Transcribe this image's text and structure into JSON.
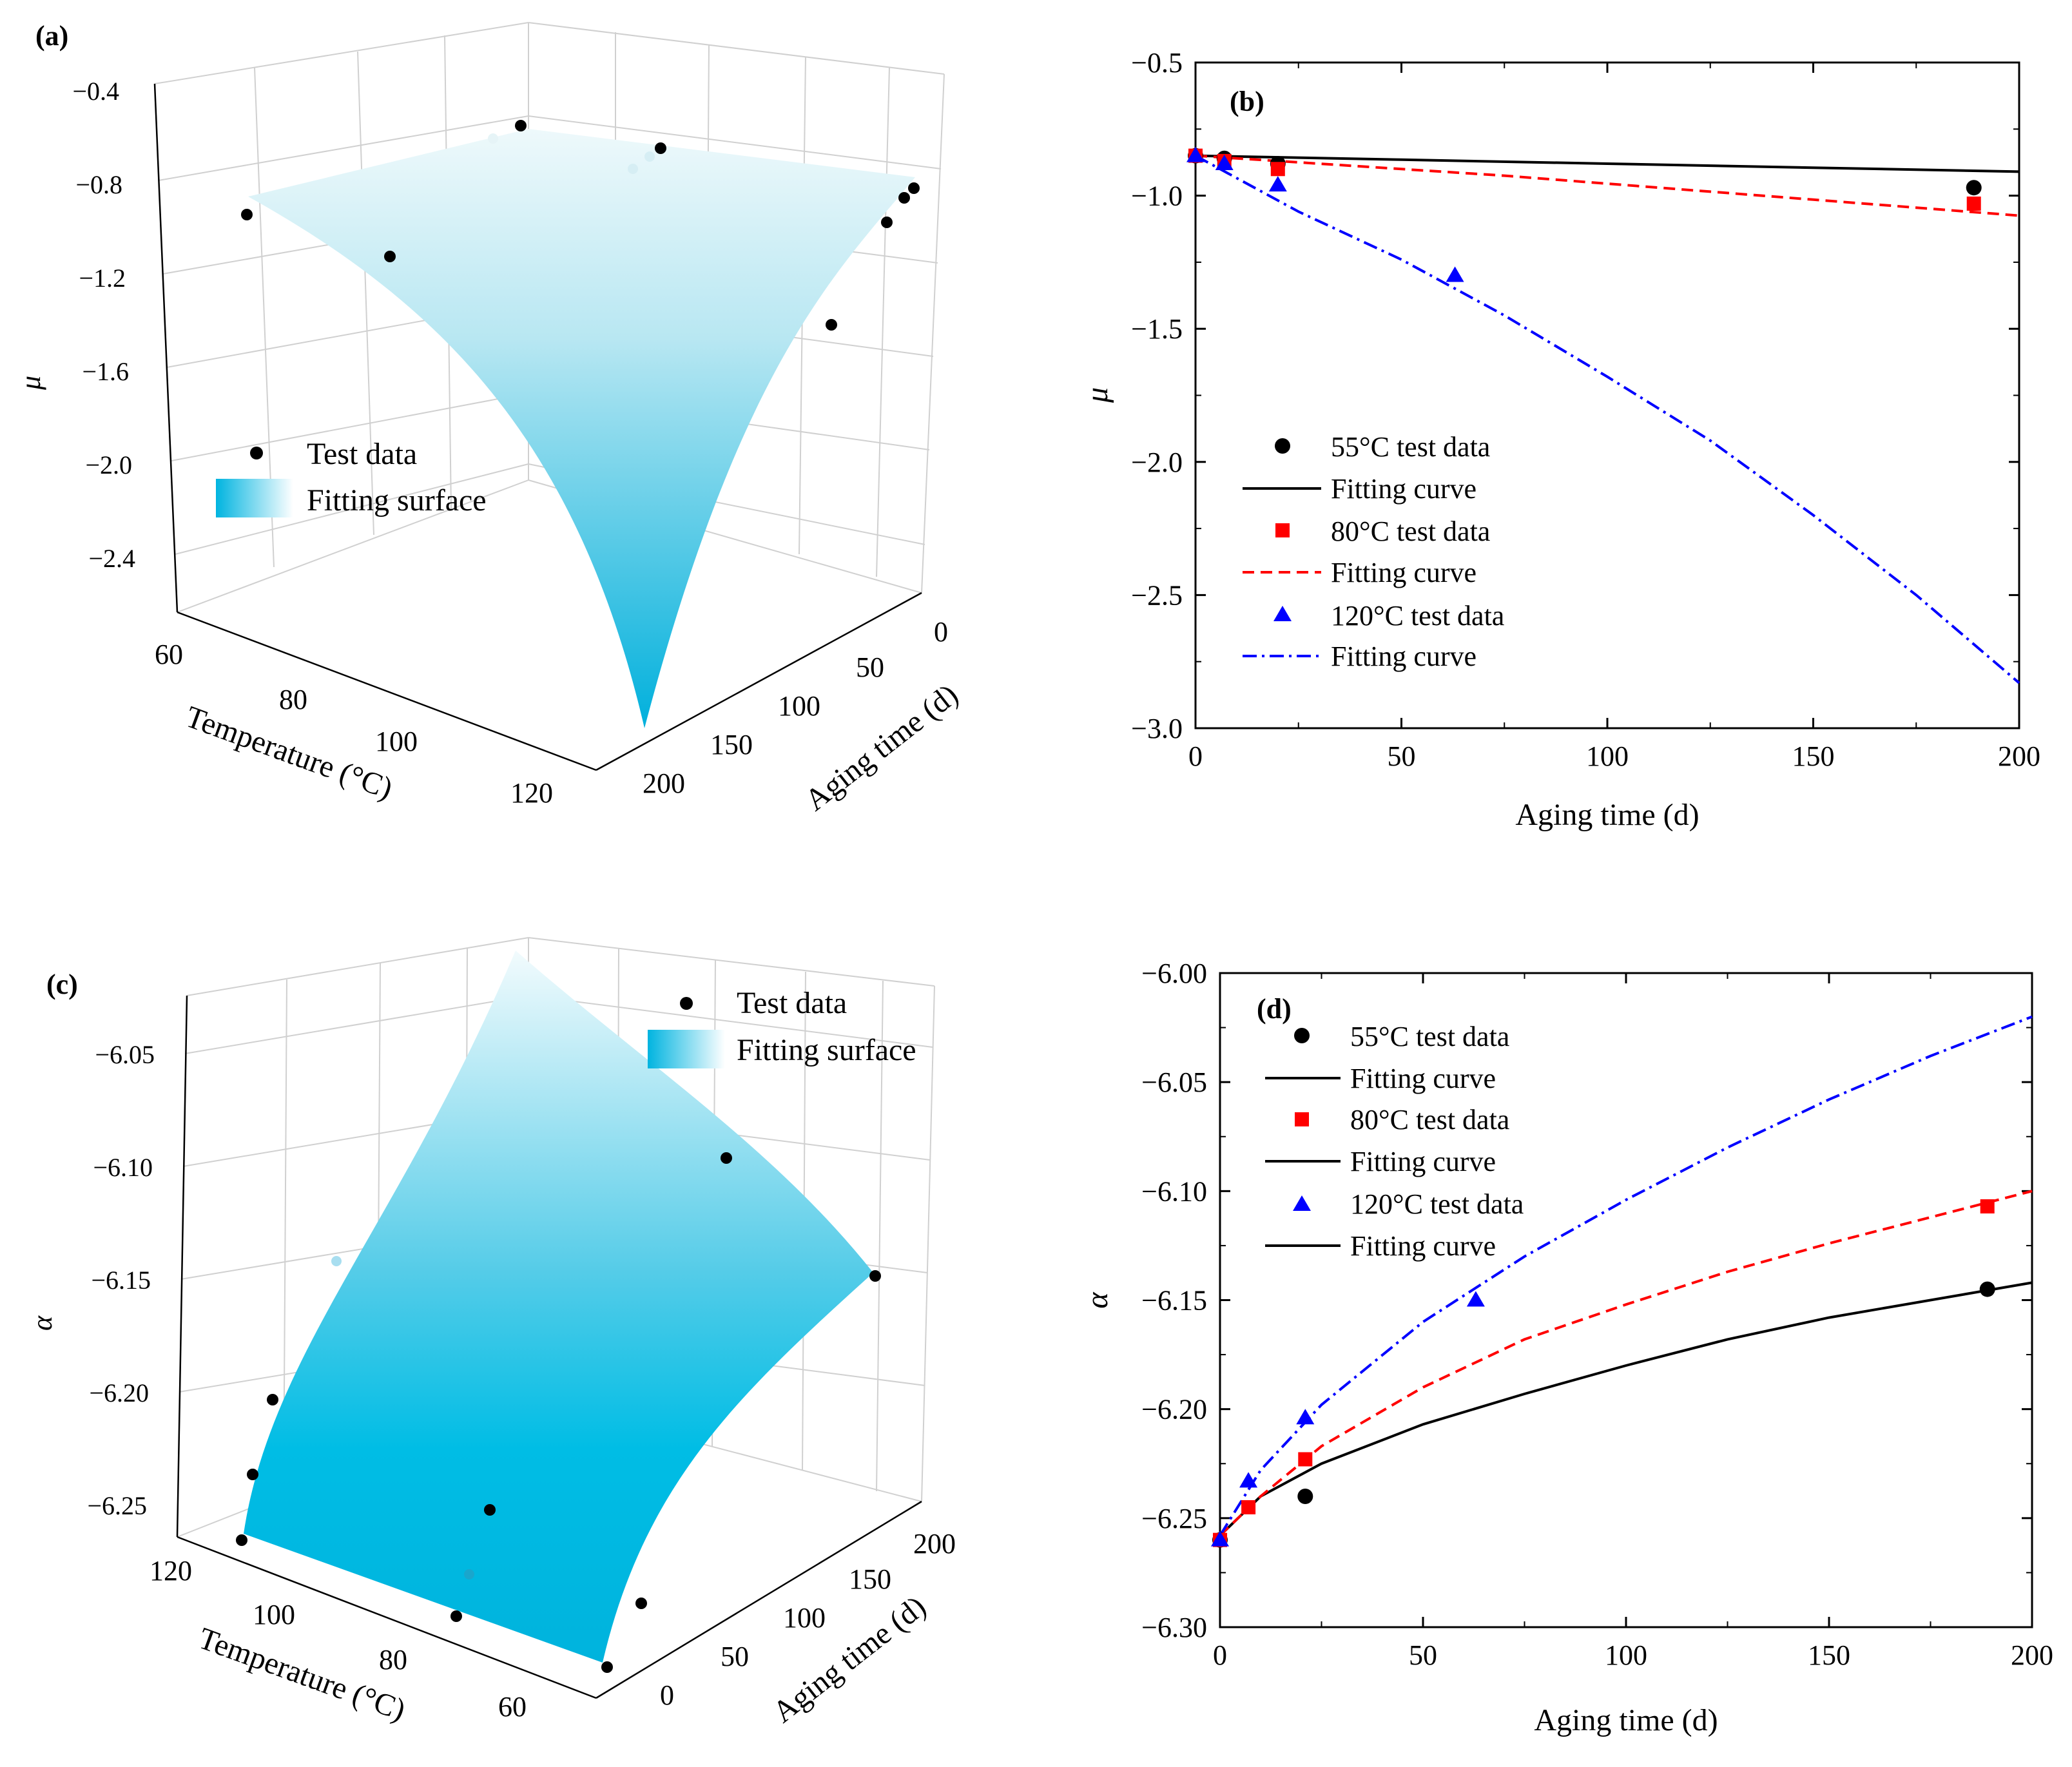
{
  "chart_data": [
    {
      "panel": "(a)",
      "type": "surface3d",
      "zlabel": "μ",
      "xlabel": "Temperature (°C)",
      "ylabel": "Aging time (d)",
      "z_ticks": [
        "−0.4",
        "−0.8",
        "−1.2",
        "−1.6",
        "−2.0",
        "−2.4"
      ],
      "x_ticks": [
        "60",
        "80",
        "100",
        "120"
      ],
      "y_ticks": [
        "0",
        "50",
        "100",
        "150",
        "200"
      ],
      "xlim": [
        55,
        120
      ],
      "ylim": [
        0,
        200
      ],
      "zlim": [
        -2.7,
        -0.4
      ],
      "legend": [
        "Test data",
        "Fitting surface"
      ],
      "legend_position": "middle-left",
      "surface_color": "#00b4e0",
      "points": [
        {
          "x": 55,
          "y": 0,
          "z": -0.85
        },
        {
          "x": 55,
          "y": 7,
          "z": -0.86
        },
        {
          "x": 55,
          "y": 20,
          "z": -0.88
        },
        {
          "x": 55,
          "y": 189,
          "z": -0.97
        },
        {
          "x": 80,
          "y": 0,
          "z": -0.85
        },
        {
          "x": 80,
          "y": 7,
          "z": -0.87
        },
        {
          "x": 80,
          "y": 20,
          "z": -0.9
        },
        {
          "x": 80,
          "y": 189,
          "z": -1.03
        },
        {
          "x": 120,
          "y": 0,
          "z": -0.85
        },
        {
          "x": 120,
          "y": 7,
          "z": -0.88
        },
        {
          "x": 120,
          "y": 20,
          "z": -0.96
        },
        {
          "x": 120,
          "y": 63,
          "z": -1.3
        }
      ]
    },
    {
      "panel": "(b)",
      "type": "scatter",
      "xlabel": "Aging time (d)",
      "ylabel": "μ",
      "xlim": [
        0,
        200
      ],
      "ylim": [
        -3.0,
        -0.5
      ],
      "x_ticks": [
        "0",
        "50",
        "100",
        "150",
        "200"
      ],
      "y_ticks": [
        "−0.5",
        "−1.0",
        "−1.5",
        "−2.0",
        "−2.5",
        "−3.0"
      ],
      "x_tick_values": [
        0,
        50,
        100,
        150,
        200
      ],
      "y_tick_values": [
        -0.5,
        -1.0,
        -1.5,
        -2.0,
        -2.5,
        -3.0
      ],
      "legend_position": "bottom-left",
      "series": [
        {
          "name": "55°C test data",
          "kind": "points",
          "marker": "circle",
          "color": "#000000",
          "x": [
            0,
            7,
            20,
            189
          ],
          "y": [
            -0.85,
            -0.86,
            -0.88,
            -0.97
          ]
        },
        {
          "name": "Fitting curve",
          "kind": "line",
          "dash": "solid",
          "color": "#000000",
          "x": [
            0,
            50,
            100,
            150,
            200
          ],
          "y": [
            -0.85,
            -0.865,
            -0.88,
            -0.895,
            -0.91
          ]
        },
        {
          "name": "80°C test data",
          "kind": "points",
          "marker": "square",
          "color": "#ff0000",
          "x": [
            0,
            7,
            20,
            189
          ],
          "y": [
            -0.85,
            -0.87,
            -0.9,
            -1.03
          ]
        },
        {
          "name": "Fitting curve",
          "kind": "line",
          "dash": "dashed",
          "color": "#ff0000",
          "x": [
            0,
            25,
            50,
            75,
            100,
            125,
            150,
            175,
            200
          ],
          "y": [
            -0.85,
            -0.875,
            -0.9,
            -0.925,
            -0.955,
            -0.985,
            -1.015,
            -1.045,
            -1.075
          ]
        },
        {
          "name": "120°C test data",
          "kind": "points",
          "marker": "triangle",
          "color": "#0000ff",
          "x": [
            0,
            7,
            20,
            63
          ],
          "y": [
            -0.85,
            -0.88,
            -0.96,
            -1.3
          ]
        },
        {
          "name": "Fitting curve",
          "kind": "line",
          "dash": "dashdot",
          "color": "#0000ff",
          "x": [
            0,
            25,
            50,
            75,
            100,
            125,
            150,
            175,
            200
          ],
          "y": [
            -0.85,
            -1.06,
            -1.24,
            -1.45,
            -1.68,
            -1.92,
            -2.2,
            -2.5,
            -2.83
          ]
        }
      ]
    },
    {
      "panel": "(c)",
      "type": "surface3d",
      "zlabel": "α",
      "xlabel": "Temperature (°C)",
      "ylabel": "Aging time (d)",
      "z_ticks": [
        "−6.05",
        "−6.10",
        "−6.15",
        "−6.20",
        "−6.25"
      ],
      "x_ticks": [
        "120",
        "100",
        "80",
        "60"
      ],
      "y_ticks": [
        "0",
        "50",
        "100",
        "150",
        "200"
      ],
      "xlim": [
        55,
        120
      ],
      "ylim": [
        0,
        200
      ],
      "zlim": [
        -6.26,
        -6.02
      ],
      "legend": [
        "Test data",
        "Fitting surface"
      ],
      "legend_position": "top-right",
      "surface_color": "#00b4e0",
      "points": [
        {
          "x": 55,
          "y": 0,
          "z": -6.26
        },
        {
          "x": 55,
          "y": 21,
          "z": -6.24
        },
        {
          "x": 55,
          "y": 189,
          "z": -6.145
        },
        {
          "x": 80,
          "y": 7,
          "z": -6.245
        },
        {
          "x": 80,
          "y": 21,
          "z": -6.223
        },
        {
          "x": 80,
          "y": 189,
          "z": -6.107
        },
        {
          "x": 120,
          "y": 7,
          "z": -6.233
        },
        {
          "x": 120,
          "y": 21,
          "z": -6.204
        },
        {
          "x": 120,
          "y": 63,
          "z": -6.15
        }
      ]
    },
    {
      "panel": "(d)",
      "type": "scatter",
      "xlabel": "Aging time (d)",
      "ylabel": "α",
      "xlim": [
        0,
        200
      ],
      "ylim": [
        -6.3,
        -6.0
      ],
      "x_ticks": [
        "0",
        "50",
        "100",
        "150",
        "200"
      ],
      "y_ticks": [
        "−6.00",
        "−6.05",
        "−6.10",
        "−6.15",
        "−6.20",
        "−6.25",
        "−6.30"
      ],
      "x_tick_values": [
        0,
        50,
        100,
        150,
        200
      ],
      "y_tick_values": [
        -6.0,
        -6.05,
        -6.1,
        -6.15,
        -6.2,
        -6.25,
        -6.3
      ],
      "legend_position": "top-left",
      "series": [
        {
          "name": "55°C test data",
          "kind": "points",
          "marker": "circle",
          "color": "#000000",
          "x": [
            0,
            21,
            189
          ],
          "y": [
            -6.26,
            -6.24,
            -6.145
          ]
        },
        {
          "name": "Fitting curve",
          "kind": "line",
          "dash": "solid",
          "color": "#000000",
          "x": [
            0,
            10,
            25,
            50,
            75,
            100,
            125,
            150,
            175,
            200
          ],
          "y": [
            -6.258,
            -6.24,
            -6.225,
            -6.207,
            -6.193,
            -6.18,
            -6.168,
            -6.158,
            -6.15,
            -6.142
          ]
        },
        {
          "name": "80°C test data",
          "kind": "points",
          "marker": "square",
          "color": "#ff0000",
          "x": [
            0,
            7,
            21,
            189
          ],
          "y": [
            -6.26,
            -6.245,
            -6.223,
            -6.107
          ]
        },
        {
          "name": "Fitting curve",
          "kind": "line",
          "dash": "dashed",
          "color": "#ff0000",
          "x": [
            0,
            10,
            25,
            50,
            75,
            100,
            125,
            150,
            175,
            200
          ],
          "y": [
            -6.258,
            -6.24,
            -6.217,
            -6.19,
            -6.168,
            -6.152,
            -6.137,
            -6.124,
            -6.112,
            -6.1
          ]
        },
        {
          "name": "120°C test data",
          "kind": "points",
          "marker": "triangle",
          "color": "#0000ff",
          "x": [
            0,
            7,
            21,
            63
          ],
          "y": [
            -6.26,
            -6.233,
            -6.204,
            -6.15
          ]
        },
        {
          "name": "Fitting curve",
          "kind": "line",
          "dash": "dashdot",
          "color": "#0000ff",
          "x": [
            0,
            10,
            25,
            50,
            75,
            100,
            125,
            150,
            175,
            200
          ],
          "y": [
            -6.258,
            -6.228,
            -6.198,
            -6.16,
            -6.13,
            -6.104,
            -6.08,
            -6.058,
            -6.038,
            -6.02
          ]
        }
      ]
    }
  ]
}
